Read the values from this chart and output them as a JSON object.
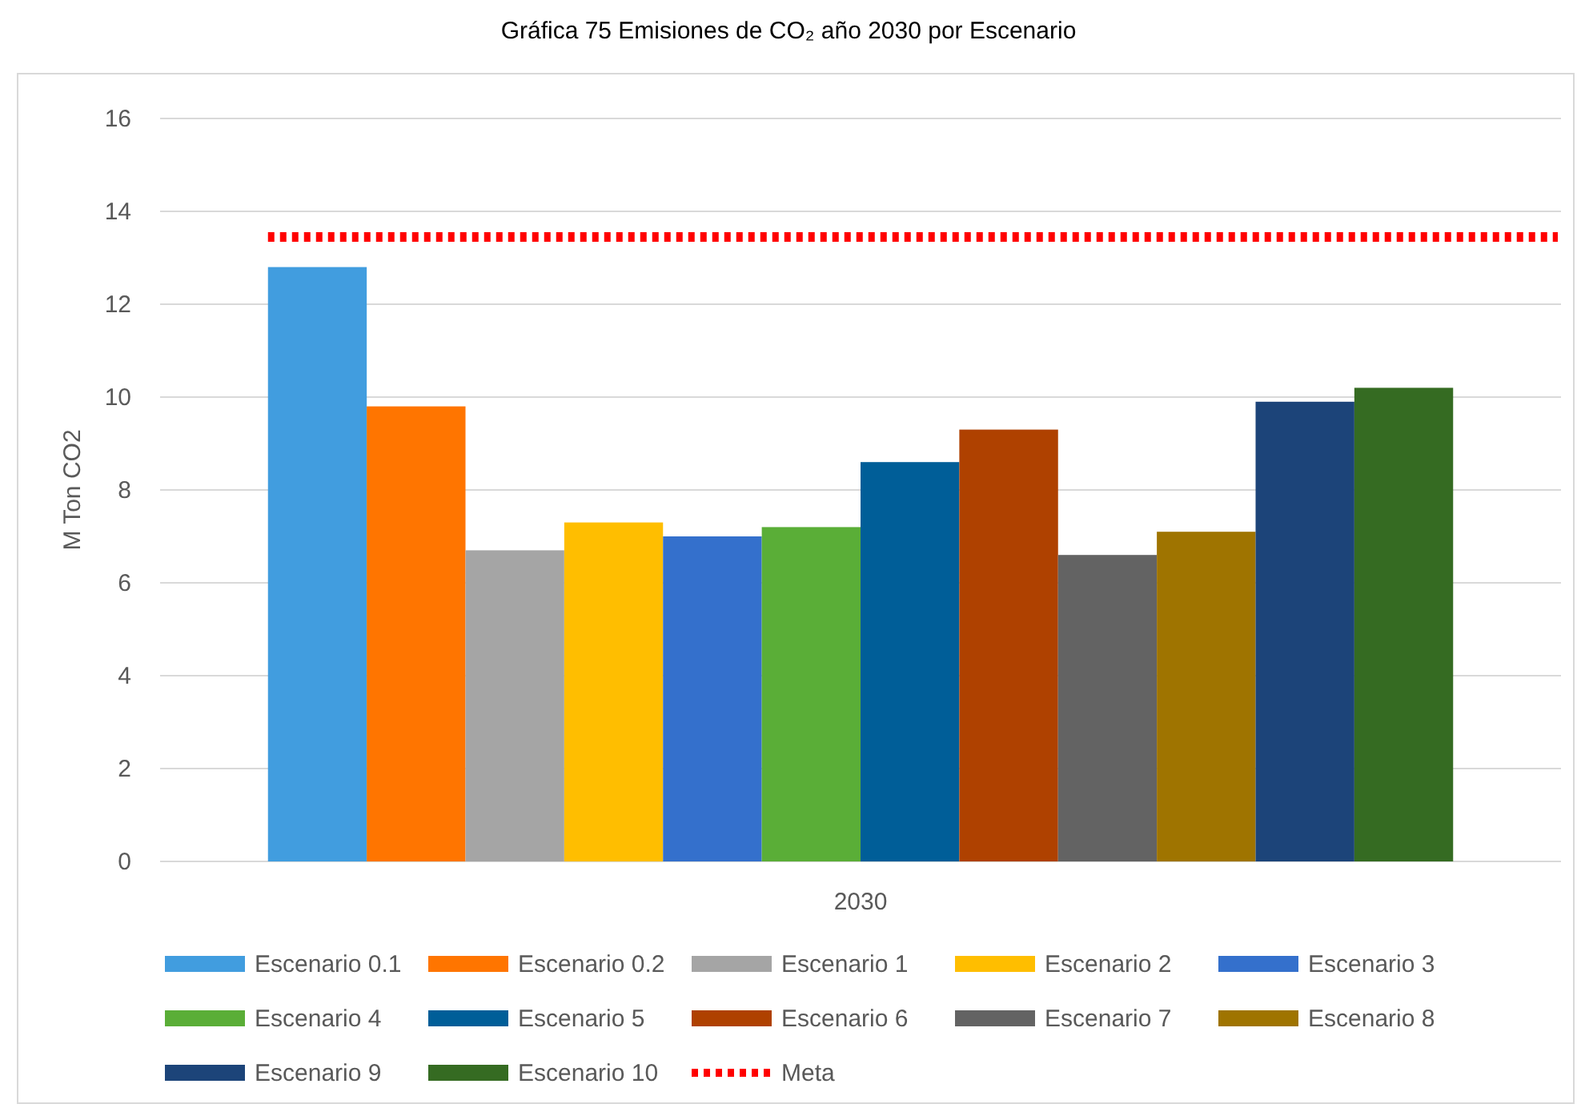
{
  "chart_data": {
    "type": "bar",
    "title": "Gráfica 75 Emisiones de CO₂ año 2030 por Escenario",
    "ylabel": "M Ton CO2",
    "categories": [
      "2030"
    ],
    "ylim": [
      0,
      16
    ],
    "yticks": [
      0,
      2,
      4,
      6,
      8,
      10,
      12,
      14,
      16
    ],
    "grid": "y",
    "legend": "bottom",
    "series": [
      {
        "name": "Escenario 0.1",
        "color": "#419ddf",
        "values": [
          12.8
        ]
      },
      {
        "name": "Escenario 0.2",
        "color": "#ff7500",
        "values": [
          9.8
        ]
      },
      {
        "name": "Escenario 1",
        "color": "#a5a5a5",
        "values": [
          6.7
        ]
      },
      {
        "name": "Escenario 2",
        "color": "#ffbe00",
        "values": [
          7.3
        ]
      },
      {
        "name": "Escenario 3",
        "color": "#3470cc",
        "values": [
          7.0
        ]
      },
      {
        "name": "Escenario 4",
        "color": "#5aae37",
        "values": [
          7.2
        ]
      },
      {
        "name": "Escenario 5",
        "color": "#005e98",
        "values": [
          8.6
        ]
      },
      {
        "name": "Escenario 6",
        "color": "#af4100",
        "values": [
          9.3
        ]
      },
      {
        "name": "Escenario 7",
        "color": "#636363",
        "values": [
          6.6
        ]
      },
      {
        "name": "Escenario 8",
        "color": "#9f7400",
        "values": [
          7.1
        ]
      },
      {
        "name": "Escenario 9",
        "color": "#1c4479",
        "values": [
          9.9
        ]
      },
      {
        "name": "Escenario 10",
        "color": "#356b22",
        "values": [
          10.2
        ]
      }
    ],
    "ref_lines": [
      {
        "axis": "y",
        "value": 13.45,
        "label": "Meta",
        "color": "#ff0000",
        "line_style": "dotted"
      }
    ]
  }
}
